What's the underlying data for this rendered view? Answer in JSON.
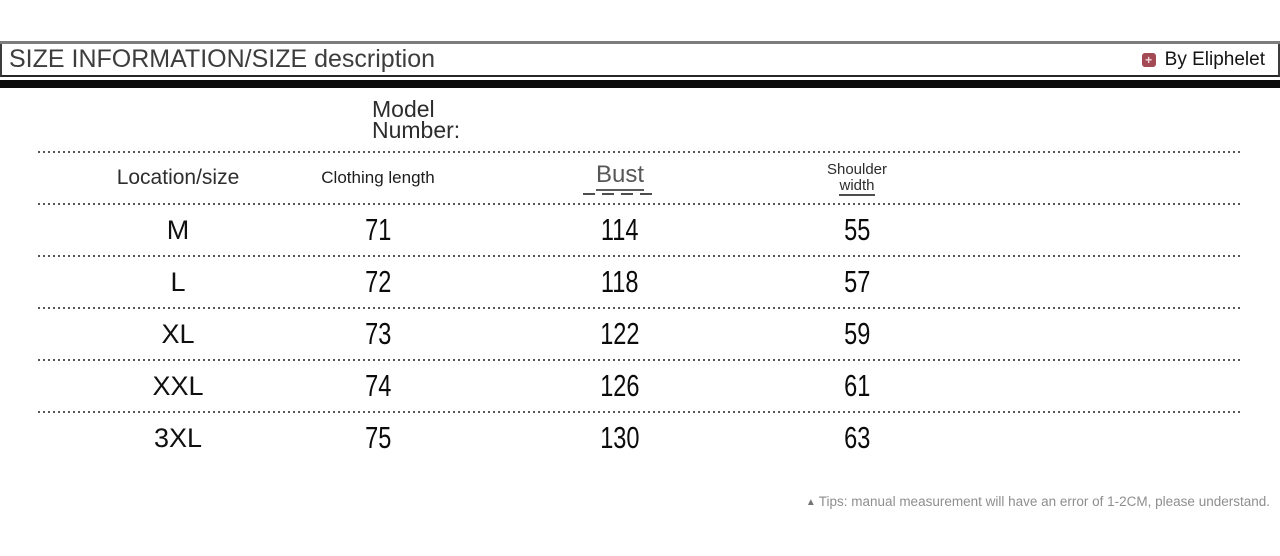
{
  "header": {
    "title": "SIZE INFORMATION/SIZE description",
    "brand_label": "By Eliphelet",
    "brand_icon_glyph": "+"
  },
  "colors": {
    "brand_badge": "#a34a55",
    "rule_black": "#0b0b0b",
    "dotline_gray": "#575757"
  },
  "model_number": {
    "line1": "Model",
    "line2": "Number:"
  },
  "size_table": {
    "header": {
      "location": "Location/size",
      "clothing_length": "Clothing length",
      "bust": "Bust",
      "shoulder_line1": "Shoulder",
      "shoulder_line2": "width"
    }
  },
  "chart_data": {
    "type": "table",
    "title": "SIZE INFORMATION/SIZE description",
    "columns": [
      "Location/size",
      "Clothing length",
      "Bust",
      "Shoulder width"
    ],
    "rows": [
      [
        "M",
        71,
        114,
        55
      ],
      [
        "L",
        72,
        118,
        57
      ],
      [
        "XL",
        73,
        122,
        59
      ],
      [
        "XXL",
        74,
        126,
        61
      ],
      [
        "3XL",
        75,
        130,
        63
      ]
    ],
    "layout": {
      "grid": "dotted-row-separators",
      "legend": "none"
    }
  },
  "footer": {
    "tips_marker": "▲",
    "tips_text": "Tips: manual measurement will have an error of 1-2CM, please understand."
  }
}
